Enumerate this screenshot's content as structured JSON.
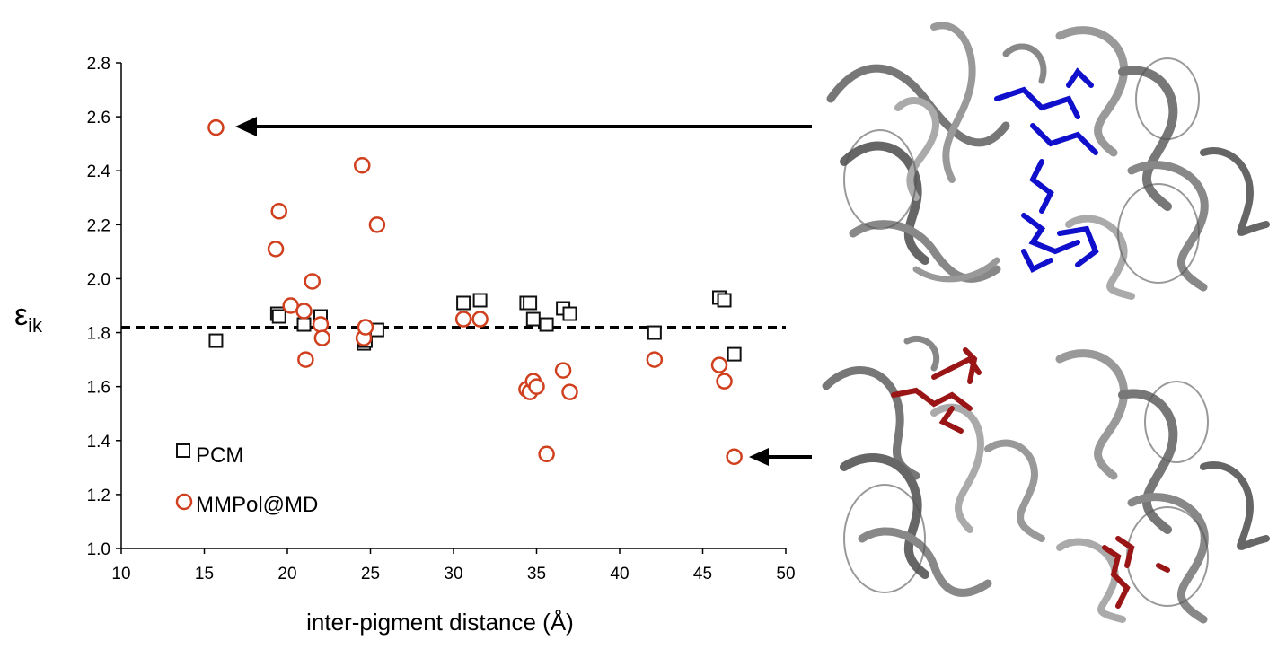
{
  "colors": {
    "pcm": "#111111",
    "mmpol": "#d0401e",
    "axis": "#000000",
    "reference_line": "#000000",
    "pigment_top": "#1010cc",
    "pigment_bottom": "#9a1515",
    "protein": "#8a8a8a"
  },
  "chart_data": {
    "type": "scatter",
    "title": "",
    "xlabel": "inter-pigment distance (Å)",
    "ylabel": "ε",
    "ylabel_sub": "ik",
    "xlim": [
      10,
      50
    ],
    "ylim": [
      1.0,
      2.8
    ],
    "xticks": [
      "10",
      "15",
      "20",
      "25",
      "30",
      "35",
      "40",
      "45",
      "50"
    ],
    "yticks": [
      "1.0",
      "1.2",
      "1.4",
      "1.6",
      "1.8",
      "2.0",
      "2.2",
      "2.4",
      "2.6",
      "2.8"
    ],
    "grid": false,
    "legend_position": "bottom-left",
    "reference_line": {
      "y": 1.82,
      "style": "dashed"
    },
    "series": [
      {
        "name": "PCM",
        "marker": "square",
        "points": [
          [
            15.7,
            1.77
          ],
          [
            19.4,
            1.87
          ],
          [
            19.5,
            1.86
          ],
          [
            21.0,
            1.83
          ],
          [
            22.0,
            1.86
          ],
          [
            24.6,
            1.76
          ],
          [
            24.7,
            1.77
          ],
          [
            25.4,
            1.81
          ],
          [
            30.6,
            1.91
          ],
          [
            31.6,
            1.92
          ],
          [
            34.4,
            1.91
          ],
          [
            34.6,
            1.91
          ],
          [
            34.8,
            1.85
          ],
          [
            35.6,
            1.83
          ],
          [
            36.6,
            1.89
          ],
          [
            37.0,
            1.87
          ],
          [
            42.1,
            1.8
          ],
          [
            46.0,
            1.93
          ],
          [
            46.3,
            1.92
          ],
          [
            46.9,
            1.72
          ]
        ]
      },
      {
        "name": "MMPol@MD",
        "marker": "circle",
        "points": [
          [
            15.7,
            2.56
          ],
          [
            19.3,
            2.11
          ],
          [
            19.5,
            2.25
          ],
          [
            20.2,
            1.9
          ],
          [
            21.0,
            1.88
          ],
          [
            21.1,
            1.7
          ],
          [
            21.5,
            1.99
          ],
          [
            22.0,
            1.83
          ],
          [
            22.1,
            1.78
          ],
          [
            24.5,
            2.42
          ],
          [
            24.6,
            1.78
          ],
          [
            24.7,
            1.82
          ],
          [
            25.4,
            2.2
          ],
          [
            30.6,
            1.85
          ],
          [
            31.6,
            1.85
          ],
          [
            34.4,
            1.59
          ],
          [
            34.6,
            1.58
          ],
          [
            34.8,
            1.62
          ],
          [
            35.0,
            1.6
          ],
          [
            35.6,
            1.35
          ],
          [
            36.6,
            1.66
          ],
          [
            37.0,
            1.58
          ],
          [
            42.1,
            1.7
          ],
          [
            46.0,
            1.68
          ],
          [
            46.3,
            1.62
          ],
          [
            46.9,
            1.34
          ]
        ]
      }
    ],
    "arrows": [
      {
        "target": [
          15.7,
          2.56
        ],
        "structure": "top"
      },
      {
        "target": [
          46.9,
          1.34
        ],
        "structure": "bottom"
      }
    ]
  },
  "structures": [
    {
      "id": "top",
      "pigment_color": "pigment_top"
    },
    {
      "id": "bottom",
      "pigment_color": "pigment_bottom"
    }
  ]
}
